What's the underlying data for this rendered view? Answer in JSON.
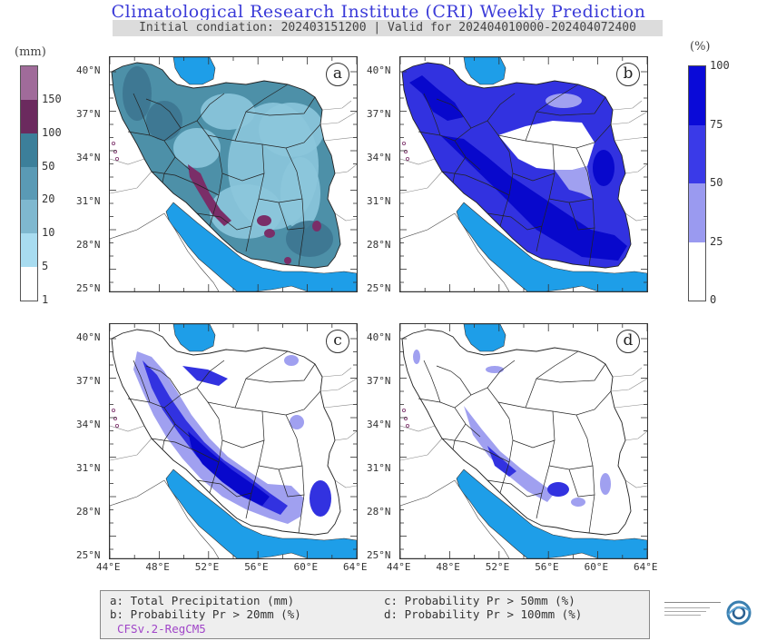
{
  "title": "Climatological Research Institute (CRI) Weekly Prediction",
  "subtitle": "Initial condiation: 202403151200 | Valid for 202404010000-202404072400",
  "colorbar_left": {
    "unit": "(mm)",
    "labels": [
      "150",
      "100",
      "50",
      "20",
      "10",
      "5",
      "1"
    ],
    "colors": [
      "#a06b9a",
      "#6b2a5e",
      "#3c7f9a",
      "#5a9ab5",
      "#7fb8cf",
      "#a8dcf0",
      "#ffffff"
    ]
  },
  "colorbar_right": {
    "unit": "(%)",
    "labels": [
      "100",
      "75",
      "50",
      "25",
      "0"
    ],
    "colors": [
      "#0a0ad8",
      "#3a3ae8",
      "#9a9af0",
      "#ffffff"
    ]
  },
  "panels": [
    {
      "label": "a"
    },
    {
      "label": "b"
    },
    {
      "label": "c"
    },
    {
      "label": "d"
    }
  ],
  "lat_labels": [
    "40°N",
    "37°N",
    "34°N",
    "31°N",
    "28°N",
    "25°N"
  ],
  "lon_labels": [
    "44°E",
    "48°E",
    "52°E",
    "56°E",
    "60°E",
    "64°E"
  ],
  "legend": {
    "a": "a: Total Precipitation (mm)",
    "b": "b: Probability Pr > 20mm (%)",
    "c": "c: Probability Pr > 50mm (%)",
    "d": "d: Probability Pr > 100mm (%)",
    "model": "CFSv.2-RegCM5"
  },
  "colors": {
    "sea": "#1e9ee8",
    "land_outline": "#222222",
    "precip_base": "#4d90a8",
    "precip_light": "#8cc6dc",
    "precip_heavy": "#7a2e68",
    "prob_high": "#0808cc",
    "prob_mid": "#3232e0",
    "prob_low": "#a0a0f0"
  }
}
